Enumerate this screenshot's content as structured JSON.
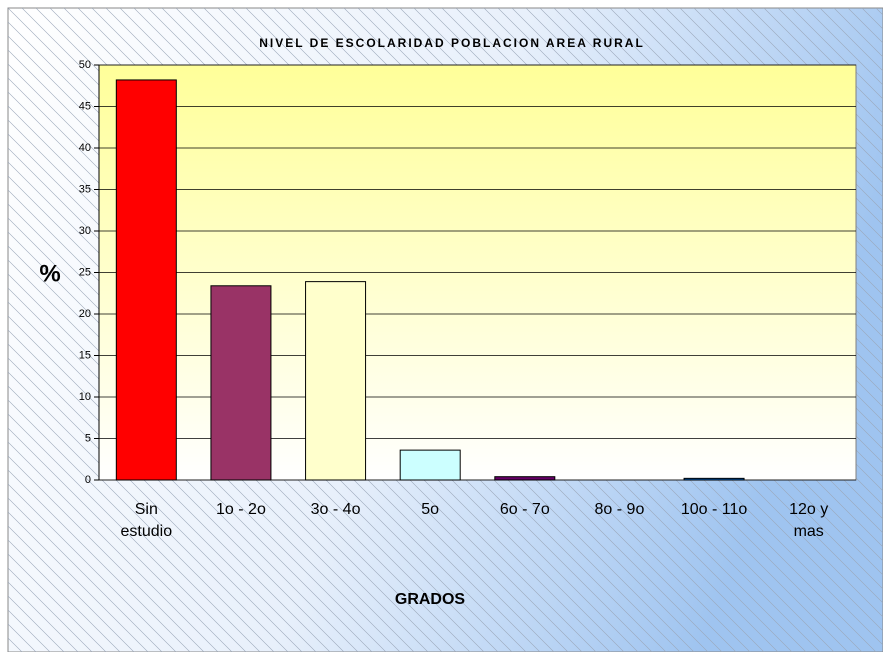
{
  "chart_data": {
    "type": "bar",
    "title": "NIVEL DE ESCOLARIDAD POBLACION AREA RURAL",
    "xlabel": "GRADOS",
    "ylabel": "%",
    "categories": [
      "Sin estudio",
      "1o - 2o",
      "3o - 4o",
      "5o",
      "6o - 7o",
      "8o - 9o",
      "10o - 11o",
      "12o y mas"
    ],
    "values": [
      48.2,
      23.4,
      23.9,
      3.6,
      0.4,
      0,
      0.2,
      0
    ],
    "colors": [
      "#ff0000",
      "#993366",
      "#ffffcc",
      "#ccffff",
      "#660066",
      "#ffffff",
      "#0066cc",
      "#ffffff"
    ],
    "ylim": [
      0,
      50
    ],
    "yticks": [
      0,
      5,
      10,
      15,
      20,
      25,
      30,
      35,
      40,
      45,
      50
    ],
    "grid": true
  }
}
